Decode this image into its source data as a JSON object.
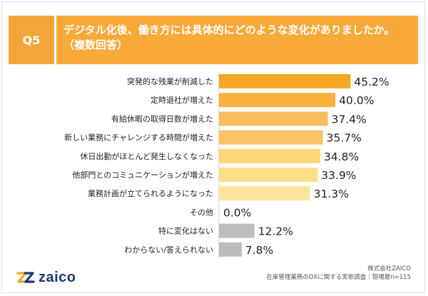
{
  "header": {
    "badge": "Q5",
    "title_line1": "デジタル化後、働き方には具体的にどのような変化がありましたか。",
    "title_line2": "（複数回答）"
  },
  "chart_data": {
    "type": "bar",
    "orientation": "horizontal",
    "title": "デジタル化後、働き方には具体的にどのような変化がありましたか。（複数回答）",
    "categories": [
      "突発的な残業が削減した",
      "定時退社が増えた",
      "有給休暇の取得日数が増えた",
      "新しい業務にチャレンジする時間が増えた",
      "休日出勤がほとんど発生しなくなった",
      "他部門とのコミュニケーションが増えた",
      "業務計画が立てられるようになった",
      "その他",
      "特に変化はない",
      "わからない/答えられない"
    ],
    "values": [
      45.2,
      40.0,
      37.4,
      35.7,
      34.8,
      33.9,
      31.3,
      0.0,
      12.2,
      7.8
    ],
    "value_labels": [
      "45.2%",
      "40.0%",
      "37.4%",
      "35.7%",
      "34.8%",
      "33.9%",
      "31.3%",
      "0.0%",
      "12.2%",
      "7.8%"
    ],
    "bar_colors": [
      "#f5a623",
      "#f8b03f",
      "#f9bc5b",
      "#f9c566",
      "#fbd776",
      "#fcde86",
      "#fde5a0",
      "#cccccc",
      "#bdbdbd",
      "#bdbdbd"
    ],
    "xlim": [
      0,
      100
    ],
    "grid": false,
    "legend": "none"
  },
  "footer": {
    "logo_text": "zaico",
    "source_line1": "株式会社ZAICO",
    "source_line2": "在庫管理業務のDXに関する実態調査｜現場層n=115"
  },
  "colors": {
    "accent": "#f9a93a",
    "brand_navy": "#1d3a6a"
  },
  "icons": {
    "logo": "zaico-logo-icon"
  }
}
